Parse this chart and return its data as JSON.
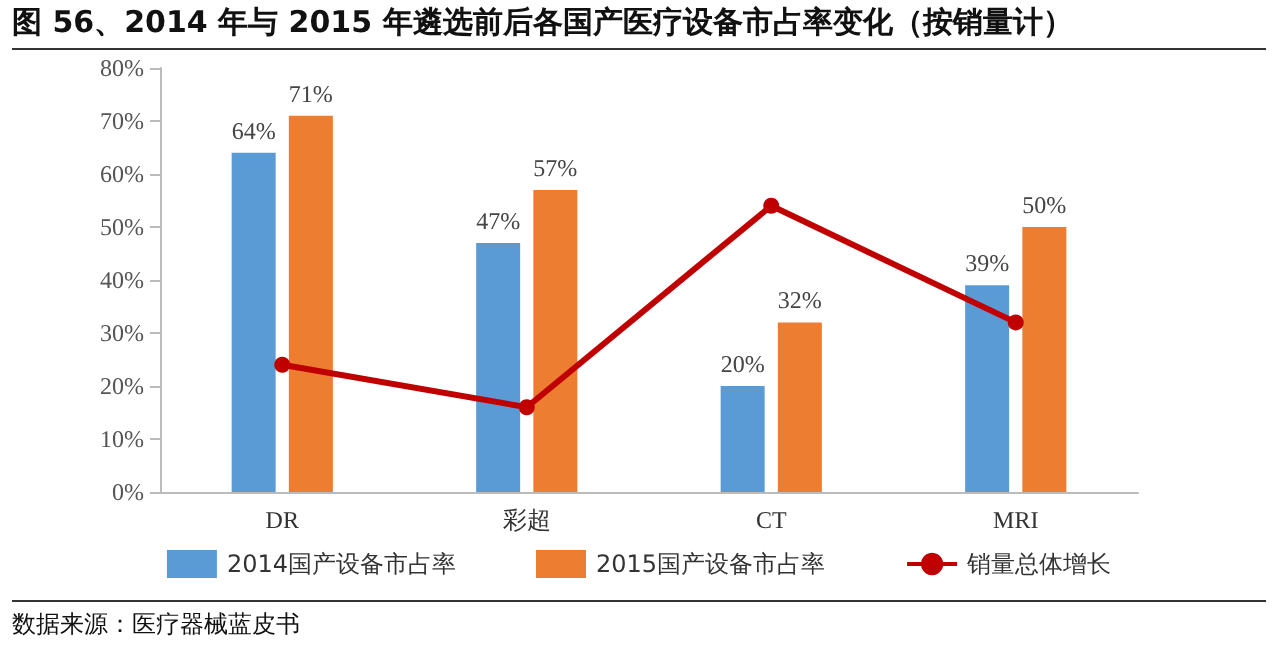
{
  "chart_data": {
    "type": "bar",
    "title": "图 56、2014 年与 2015 年遴选前后各国产医疗设备市占率变化（按销量计）",
    "categories": [
      "DR",
      "彩超",
      "CT",
      "MRI"
    ],
    "series": [
      {
        "name": "2014国产设备市占率",
        "color": "#5b9bd5",
        "values": [
          64,
          47,
          20,
          39
        ],
        "value_labels": [
          "64%",
          "47%",
          "20%",
          "39%"
        ]
      },
      {
        "name": "2015国产设备市占率",
        "color": "#ed7d31",
        "values": [
          71,
          57,
          32,
          50
        ],
        "value_labels": [
          "71%",
          "57%",
          "32%",
          "50%"
        ]
      },
      {
        "name": "销量总体增长",
        "type": "line",
        "color": "#c00000",
        "values": [
          24,
          16,
          54,
          32
        ],
        "marker": "circle",
        "line_style": "solid"
      }
    ],
    "ylim": [
      0,
      80
    ],
    "yticks": [
      {
        "value": 0,
        "label": "0%"
      },
      {
        "value": 10,
        "label": "10%"
      },
      {
        "value": 20,
        "label": "20%"
      },
      {
        "value": 30,
        "label": "30%"
      },
      {
        "value": 40,
        "label": "40%"
      },
      {
        "value": 50,
        "label": "50%"
      },
      {
        "value": 60,
        "label": "60%"
      },
      {
        "value": 70,
        "label": "70%"
      },
      {
        "value": 80,
        "label": "80%"
      }
    ],
    "grid": false,
    "legend": "bottom",
    "annotations": [
      "数据来源：医疗器械蓝皮书"
    ]
  }
}
